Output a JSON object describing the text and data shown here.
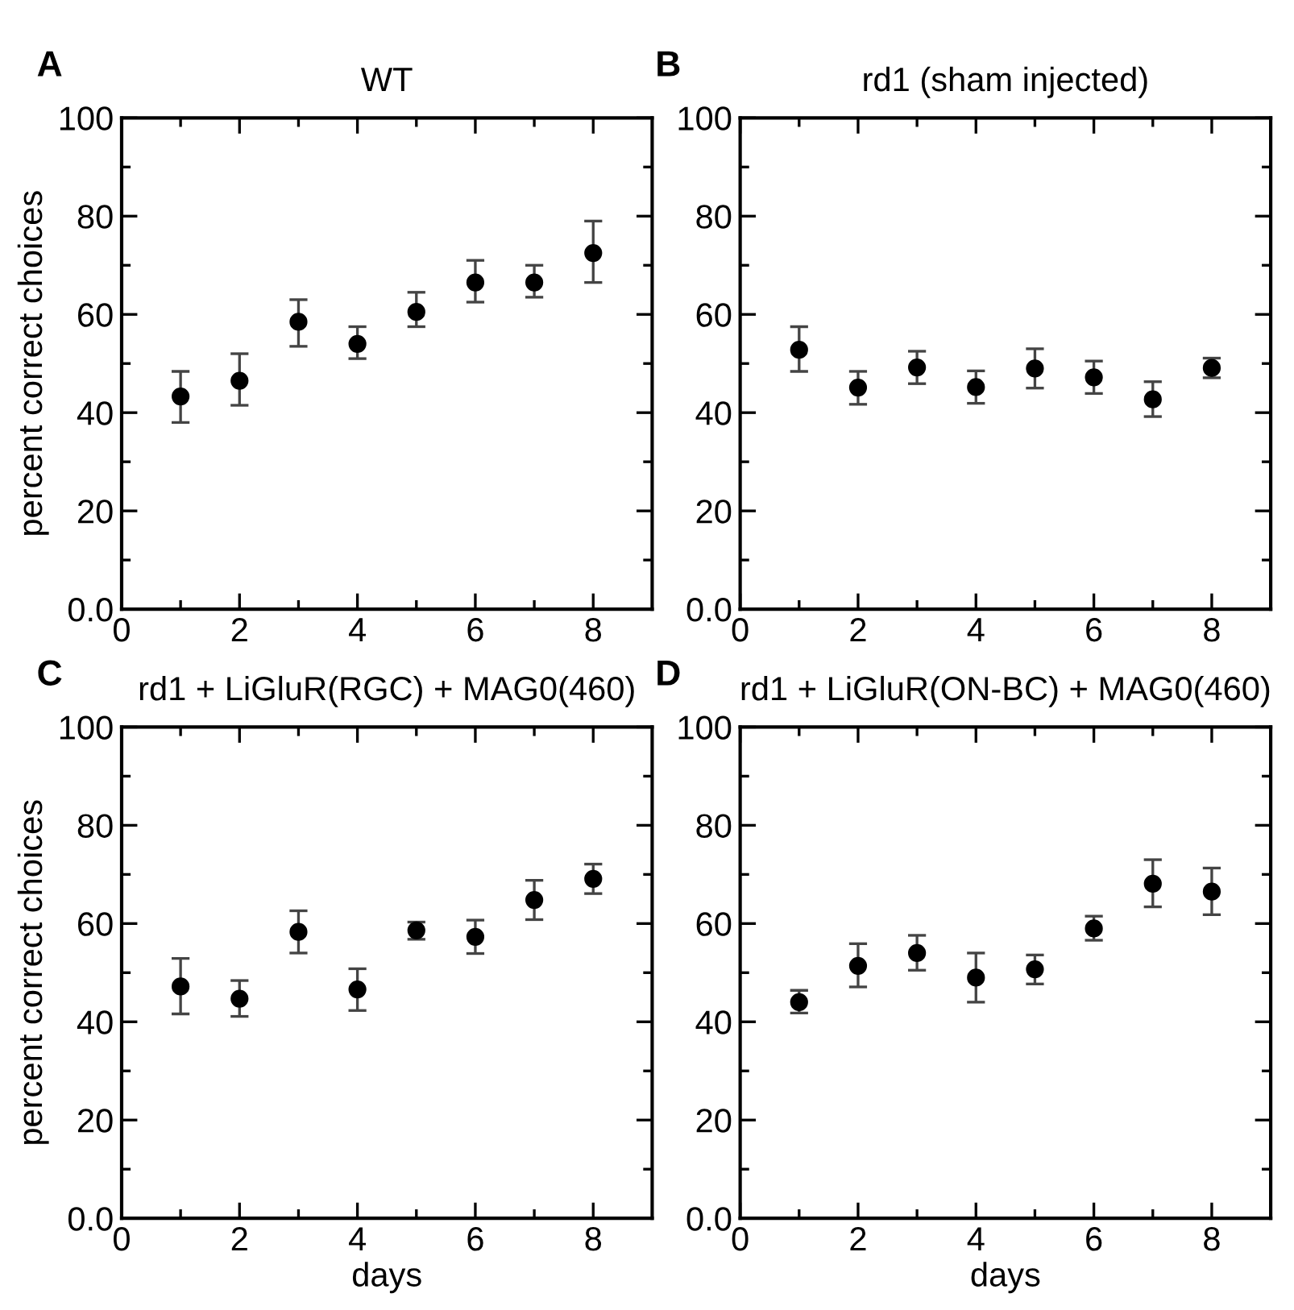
{
  "chart_data": [
    {
      "type": "scatter",
      "title": "WT",
      "ylabel": "percent correct choices",
      "annotations": [
        "A"
      ],
      "x": [
        1,
        2,
        3,
        4,
        5,
        6,
        7,
        8
      ],
      "marker": "circle",
      "grid": false,
      "legend": false,
      "series": [
        {
          "color": "#000000",
          "values": [
            43.3,
            46.5,
            58.5,
            54,
            60.5,
            66.5,
            66.5,
            72.5
          ],
          "errors": [
            [
              38,
              48.4
            ],
            [
              41.5,
              52
            ],
            [
              53.5,
              63
            ],
            [
              51,
              57.5
            ],
            [
              57.5,
              64.5
            ],
            [
              62.5,
              71
            ],
            [
              63.5,
              70
            ],
            [
              66.5,
              79
            ]
          ]
        }
      ],
      "xlim": [
        0,
        9
      ],
      "xticks": [
        0,
        {
          "value": 1,
          "label": null
        },
        2,
        {
          "value": 3,
          "label": null
        },
        4,
        {
          "value": 5,
          "label": null
        },
        6,
        {
          "value": 7,
          "label": null
        },
        8
      ],
      "ylim": [
        0,
        100
      ],
      "yticks": [
        {
          "value": 0,
          "label": "0.0"
        },
        {
          "value": 10,
          "label": null
        },
        20,
        {
          "value": 30,
          "label": null
        },
        40,
        {
          "value": 50,
          "label": null
        },
        60,
        {
          "value": 70,
          "label": null
        },
        80,
        {
          "value": 90,
          "label": null
        },
        100
      ]
    },
    {
      "type": "scatter",
      "title": "rd1 (sham injected)",
      "annotations": [
        "B"
      ],
      "x": [
        1,
        2,
        3,
        4,
        5,
        6,
        7,
        8
      ],
      "marker": "circle",
      "grid": false,
      "legend": false,
      "series": [
        {
          "color": "#000000",
          "values": [
            52.8,
            45.1,
            49.2,
            45.2,
            49,
            47.2,
            42.7,
            49.1
          ],
          "errors": [
            [
              48.4,
              57.5
            ],
            [
              41.7,
              48.4
            ],
            [
              45.9,
              52.5
            ],
            [
              41.9,
              48.5
            ],
            [
              45,
              53
            ],
            [
              43.9,
              50.5
            ],
            [
              39.2,
              46.3
            ],
            [
              47.1,
              51.1
            ]
          ]
        }
      ],
      "xlim": [
        0,
        9
      ],
      "xticks": [
        0,
        {
          "value": 1,
          "label": null
        },
        2,
        {
          "value": 3,
          "label": null
        },
        4,
        {
          "value": 5,
          "label": null
        },
        6,
        {
          "value": 7,
          "label": null
        },
        8
      ],
      "ylim": [
        0,
        100
      ],
      "yticks": [
        {
          "value": 0,
          "label": "0.0"
        },
        {
          "value": 10,
          "label": null
        },
        20,
        {
          "value": 30,
          "label": null
        },
        40,
        {
          "value": 50,
          "label": null
        },
        60,
        {
          "value": 70,
          "label": null
        },
        80,
        {
          "value": 90,
          "label": null
        },
        100
      ]
    },
    {
      "type": "scatter",
      "title": "rd1 + LiGluR(RGC) + MAG0(460)",
      "xlabel": "days",
      "ylabel": "percent correct choices",
      "annotations": [
        "C"
      ],
      "x": [
        1,
        2,
        3,
        4,
        5,
        6,
        7,
        8
      ],
      "marker": "circle",
      "grid": false,
      "legend": false,
      "series": [
        {
          "color": "#000000",
          "values": [
            47.2,
            44.7,
            58.3,
            46.6,
            58.6,
            57.3,
            64.8,
            69.1
          ],
          "errors": [
            [
              41.6,
              52.9
            ],
            [
              41.1,
              48.4
            ],
            [
              54,
              62.6
            ],
            [
              42.3,
              50.8
            ],
            [
              56.8,
              60.3
            ],
            [
              53.9,
              60.7
            ],
            [
              60.8,
              68.8
            ],
            [
              66.1,
              72.1
            ]
          ]
        }
      ],
      "xlim": [
        0,
        9
      ],
      "xticks": [
        0,
        {
          "value": 1,
          "label": null
        },
        2,
        {
          "value": 3,
          "label": null
        },
        4,
        {
          "value": 5,
          "label": null
        },
        6,
        {
          "value": 7,
          "label": null
        },
        8
      ],
      "ylim": [
        0,
        100
      ],
      "yticks": [
        {
          "value": 0,
          "label": "0.0"
        },
        {
          "value": 10,
          "label": null
        },
        20,
        {
          "value": 30,
          "label": null
        },
        40,
        {
          "value": 50,
          "label": null
        },
        60,
        {
          "value": 70,
          "label": null
        },
        80,
        {
          "value": 90,
          "label": null
        },
        100
      ]
    },
    {
      "type": "scatter",
      "title": "rd1 + LiGluR(ON-BC) + MAG0(460)",
      "xlabel": "days",
      "annotations": [
        "D"
      ],
      "x": [
        1,
        2,
        3,
        4,
        5,
        6,
        7,
        8
      ],
      "marker": "circle",
      "grid": false,
      "legend": false,
      "series": [
        {
          "color": "#000000",
          "values": [
            44,
            51.4,
            54,
            49,
            50.7,
            59,
            68.1,
            66.5
          ],
          "errors": [
            [
              41.8,
              46.4
            ],
            [
              47.1,
              55.9
            ],
            [
              50.5,
              57.6
            ],
            [
              44,
              54
            ],
            [
              47.7,
              53.6
            ],
            [
              56.6,
              61.5
            ],
            [
              63.4,
              73
            ],
            [
              61.8,
              71.3
            ]
          ]
        }
      ],
      "xlim": [
        0,
        9
      ],
      "xticks": [
        0,
        {
          "value": 1,
          "label": null
        },
        2,
        {
          "value": 3,
          "label": null
        },
        4,
        {
          "value": 5,
          "label": null
        },
        6,
        {
          "value": 7,
          "label": null
        },
        8
      ],
      "ylim": [
        0,
        100
      ],
      "yticks": [
        {
          "value": 0,
          "label": "0.0"
        },
        {
          "value": 10,
          "label": null
        },
        20,
        {
          "value": 30,
          "label": null
        },
        40,
        {
          "value": 50,
          "label": null
        },
        60,
        {
          "value": 70,
          "label": null
        },
        80,
        {
          "value": 90,
          "label": null
        },
        100
      ]
    }
  ]
}
